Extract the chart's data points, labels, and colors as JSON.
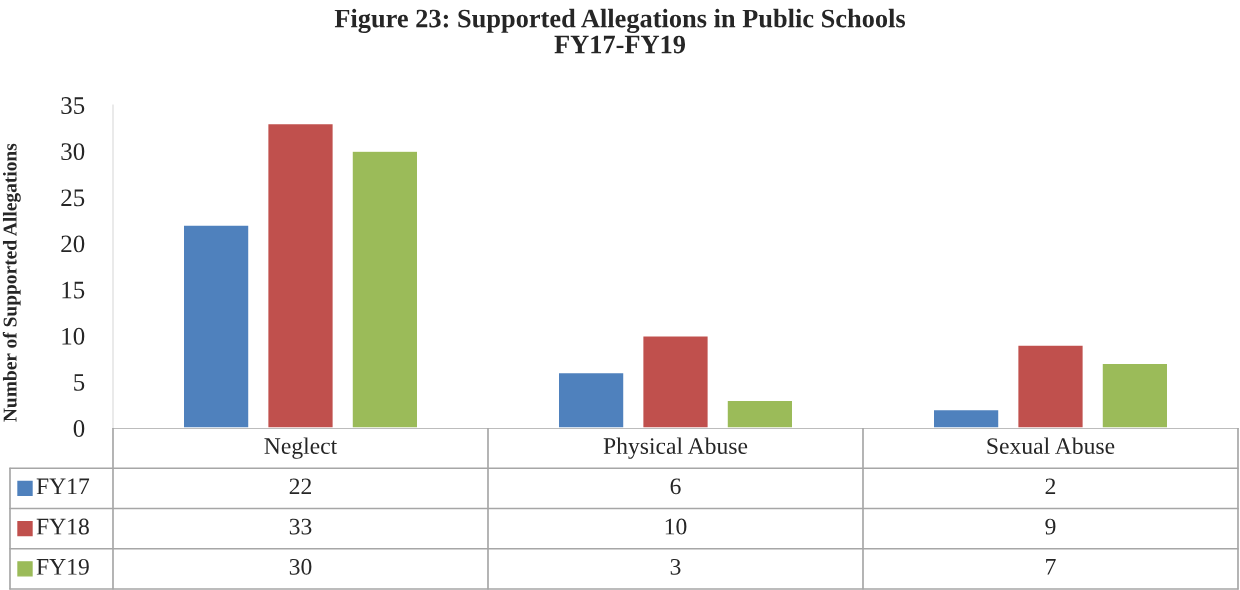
{
  "chart_data": {
    "type": "bar",
    "title": "Figure 23: Supported Allegations in Public Schools\nFY17-FY19",
    "ylabel": "Number of Supported Allegations",
    "categories": [
      "Neglect",
      "Physical Abuse",
      "Sexual Abuse"
    ],
    "series": [
      {
        "name": "FY17",
        "color": "#4f81bd",
        "values": [
          22,
          6,
          2
        ]
      },
      {
        "name": "FY18",
        "color": "#c0504d",
        "values": [
          33,
          10,
          9
        ]
      },
      {
        "name": "FY19",
        "color": "#9bbb59",
        "values": [
          30,
          3,
          7
        ]
      }
    ],
    "ylim": [
      0,
      35
    ],
    "yticks": [
      0,
      5,
      10,
      15,
      20,
      25,
      30,
      35
    ],
    "grid": false,
    "legend": "bottom",
    "data_labels": true
  }
}
